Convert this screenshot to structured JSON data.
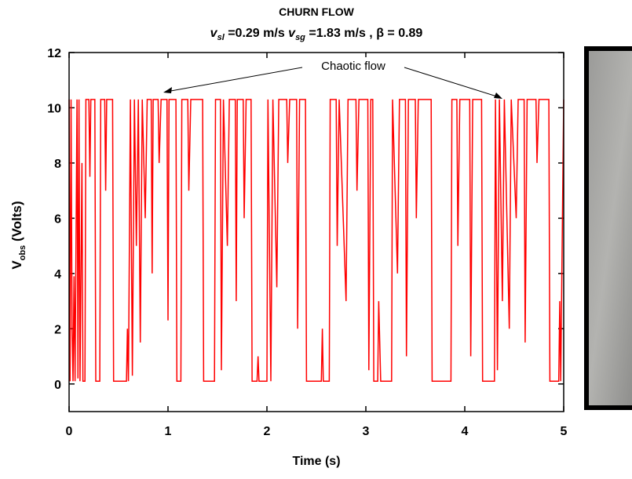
{
  "chart_data": {
    "type": "line",
    "title": "CHURN FLOW",
    "subtitle": [
      "v",
      "sl",
      " =0.29 m/s ",
      "v",
      "sg",
      " =1.83 m/s , β = 0.89"
    ],
    "x_label": "Time (s)",
    "y_label": [
      "V",
      "obs",
      " (Volts)"
    ],
    "annotation": "Chaotic flow",
    "color": "#ff0000",
    "xlim": [
      0,
      5
    ],
    "ylim": [
      -1,
      12
    ],
    "xticks": [
      0,
      1,
      2,
      3,
      4,
      5
    ],
    "yticks": [
      0,
      2,
      4,
      6,
      8,
      10,
      12
    ],
    "x": [
      0,
      0.01,
      0.02,
      0.03,
      0.04,
      0.05,
      0.06,
      0.08,
      0.09,
      0.1,
      0.11,
      0.13,
      0.14,
      0.16,
      0.17,
      0.2,
      0.21,
      0.22,
      0.26,
      0.27,
      0.31,
      0.32,
      0.36,
      0.37,
      0.38,
      0.44,
      0.45,
      0.58,
      0.59,
      0.6,
      0.62,
      0.64,
      0.66,
      0.68,
      0.7,
      0.72,
      0.74,
      0.77,
      0.79,
      0.83,
      0.84,
      0.85,
      0.9,
      0.91,
      0.93,
      0.99,
      1.0,
      1.01,
      1.08,
      1.09,
      1.13,
      1.14,
      1.2,
      1.21,
      1.23,
      1.35,
      1.36,
      1.47,
      1.48,
      1.53,
      1.54,
      1.56,
      1.6,
      1.62,
      1.68,
      1.69,
      1.7,
      1.76,
      1.77,
      1.79,
      1.84,
      1.85,
      1.9,
      1.91,
      1.92,
      2.0,
      2.01,
      2.04,
      2.06,
      2.1,
      2.12,
      2.2,
      2.21,
      2.23,
      2.3,
      2.31,
      2.33,
      2.39,
      2.4,
      2.55,
      2.56,
      2.57,
      2.63,
      2.64,
      2.7,
      2.71,
      2.73,
      2.8,
      2.82,
      2.9,
      2.91,
      2.93,
      3.02,
      3.03,
      3.05,
      3.07,
      3.08,
      3.12,
      3.13,
      3.15,
      3.26,
      3.27,
      3.32,
      3.34,
      3.4,
      3.41,
      3.43,
      3.5,
      3.51,
      3.53,
      3.66,
      3.67,
      3.86,
      3.87,
      3.92,
      3.93,
      3.95,
      4.05,
      4.06,
      4.08,
      4.17,
      4.18,
      4.3,
      4.31,
      4.33,
      4.35,
      4.38,
      4.4,
      4.45,
      4.47,
      4.52,
      4.54,
      4.6,
      4.61,
      4.63,
      4.72,
      4.73,
      4.75,
      4.85,
      4.86,
      4.95,
      4.96,
      4.97,
      5.0
    ],
    "values": [
      10.3,
      0.1,
      10.3,
      2,
      0.1,
      3.9,
      0.1,
      10.3,
      0.2,
      10.3,
      0.1,
      8,
      0.1,
      0.1,
      10.3,
      10.3,
      7.5,
      10.3,
      10.3,
      0.1,
      0.1,
      10.3,
      10.3,
      7,
      10.3,
      10.3,
      0.1,
      0.1,
      2,
      0.1,
      10.3,
      0.3,
      10.3,
      5,
      10.3,
      1.5,
      10.3,
      6,
      10.3,
      10.3,
      4,
      10.3,
      10.3,
      8,
      10.3,
      10.3,
      2.3,
      10.3,
      10.3,
      0.1,
      0.1,
      10.3,
      10.3,
      7,
      10.3,
      10.3,
      0.1,
      0.1,
      10.3,
      10.3,
      0.5,
      10.3,
      5,
      10.3,
      10.3,
      3,
      10.3,
      10.3,
      6,
      10.3,
      10.3,
      0.1,
      0.1,
      1,
      0.1,
      0.1,
      10.3,
      0.1,
      10.3,
      3.5,
      10.3,
      10.3,
      8,
      10.3,
      10.3,
      2,
      10.3,
      10.3,
      0.1,
      0.1,
      2,
      0.1,
      0.1,
      10.3,
      10.3,
      5,
      10.3,
      3,
      10.3,
      10.3,
      7,
      10.3,
      10.3,
      0.5,
      10.3,
      10.3,
      0.1,
      0.1,
      3,
      0.1,
      0.1,
      10.3,
      4,
      10.3,
      10.3,
      1,
      10.3,
      10.3,
      6,
      10.3,
      10.3,
      0.1,
      0.1,
      10.3,
      10.3,
      5,
      10.3,
      10.3,
      1,
      10.3,
      10.3,
      0.1,
      0.1,
      10.3,
      0.5,
      10.3,
      3,
      10.3,
      2,
      10.3,
      6,
      10.3,
      10.3,
      1.5,
      10.3,
      10.3,
      8,
      10.3,
      10.3,
      0.1,
      0.1,
      3,
      0.1,
      10.3
    ]
  }
}
